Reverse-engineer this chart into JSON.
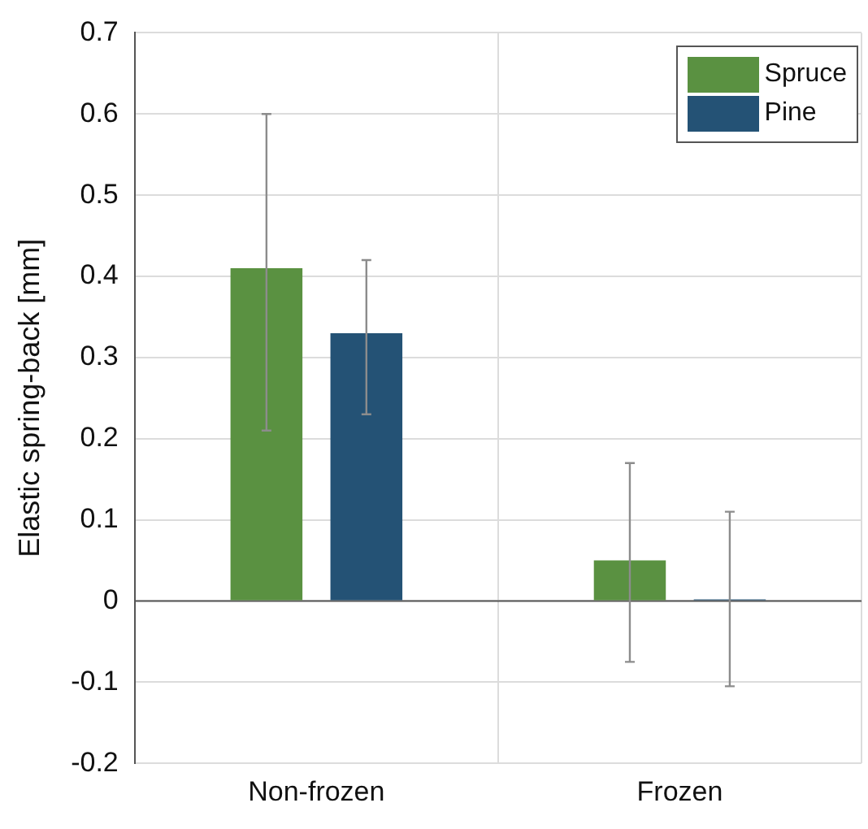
{
  "chart_data": {
    "type": "bar",
    "ylabel": "Elastic spring-back [mm]",
    "categories": [
      "Non-frozen",
      "Frozen"
    ],
    "series": [
      {
        "name": "Spruce",
        "color": "#5a9141",
        "values": [
          0.41,
          0.05
        ],
        "errors": [
          [
            0.21,
            0.6
          ],
          [
            -0.075,
            0.17
          ]
        ]
      },
      {
        "name": "Pine",
        "color": "#245275",
        "values": [
          0.33,
          0.002
        ],
        "errors": [
          [
            0.23,
            0.42
          ],
          [
            -0.105,
            0.11
          ]
        ]
      }
    ],
    "ylim": [
      -0.2,
      0.7
    ],
    "yticks": [
      -0.2,
      -0.1,
      0,
      0.1,
      0.2,
      0.3,
      0.4,
      0.5,
      0.6,
      0.7
    ],
    "grid": true,
    "legend": "top right"
  }
}
